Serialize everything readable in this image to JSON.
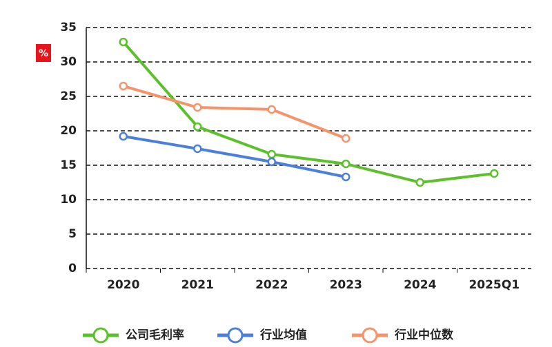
{
  "chart_data": {
    "type": "line",
    "y_label": "%",
    "categories": [
      "2020",
      "2021",
      "2022",
      "2023",
      "2024",
      "2025Q1"
    ],
    "series": [
      {
        "name": "公司毛利率",
        "color": "#5cc02a",
        "values": [
          32.9,
          20.6,
          16.6,
          15.2,
          12.5,
          13.8
        ]
      },
      {
        "name": "行业均值",
        "color": "#4a7fdb",
        "values": [
          19.2,
          17.4,
          15.5,
          13.3,
          null,
          null
        ]
      },
      {
        "name": "行业中位数",
        "color": "#f5936a",
        "values": [
          26.5,
          23.4,
          23.1,
          18.9,
          null,
          null
        ]
      }
    ],
    "ylim": [
      0,
      35
    ],
    "yticks": [
      0,
      5,
      10,
      15,
      20,
      25,
      30,
      35
    ],
    "grid": true
  }
}
